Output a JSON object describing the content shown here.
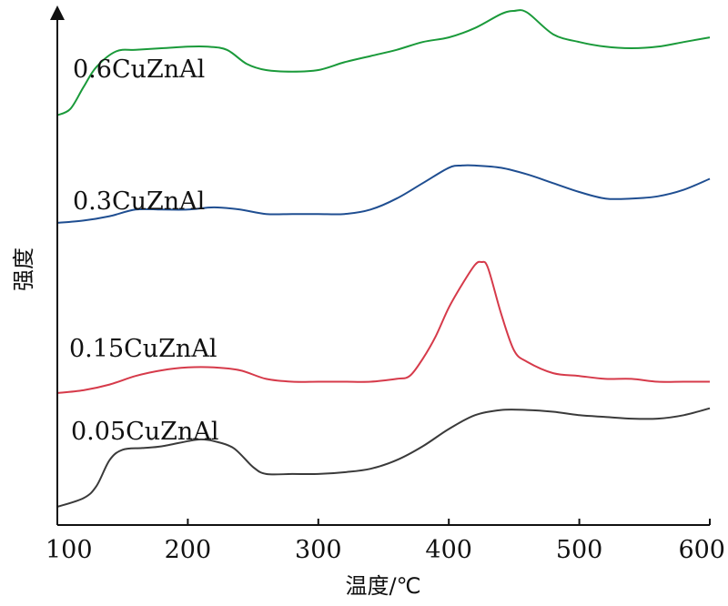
{
  "chart_data": {
    "type": "line",
    "xlabel": "温度/℃",
    "ylabel": "强度",
    "xlim": [
      100,
      600
    ],
    "x_ticks": [
      "100",
      "200",
      "300",
      "400",
      "500",
      "600"
    ],
    "y_ticks_shown": false,
    "grid": false,
    "legend": "labels placed above each curve at the left",
    "series": [
      {
        "name": "0.6CuZnAl",
        "color": "#1a9a3a",
        "x": [
          100,
          110,
          120,
          130,
          145,
          160,
          180,
          200,
          215,
          230,
          245,
          260,
          280,
          300,
          320,
          340,
          360,
          380,
          400,
          420,
          440,
          450,
          460,
          480,
          500,
          520,
          540,
          560,
          580,
          600
        ],
        "y": [
          33,
          37,
          51,
          64,
          74,
          75,
          76,
          77,
          77,
          75,
          66,
          62,
          61,
          62,
          67,
          71,
          75,
          80,
          83,
          89,
          98,
          100,
          99,
          85,
          80,
          77,
          76,
          77,
          80,
          83
        ]
      },
      {
        "name": "0.3CuZnAl",
        "color": "#1f4e91",
        "x": [
          100,
          120,
          140,
          160,
          180,
          200,
          220,
          240,
          260,
          280,
          300,
          320,
          340,
          360,
          380,
          400,
          410,
          420,
          440,
          460,
          480,
          500,
          520,
          540,
          560,
          580,
          600
        ],
        "y": [
          17,
          18,
          20,
          23,
          23,
          23,
          24,
          23,
          21,
          21,
          21,
          21,
          23,
          28,
          35,
          42,
          43,
          43,
          42,
          39,
          35,
          31,
          28,
          28,
          29,
          32,
          37
        ]
      },
      {
        "name": "0.15CuZnAl",
        "color": "#d63a4a",
        "x": [
          100,
          120,
          140,
          160,
          180,
          200,
          220,
          240,
          260,
          280,
          300,
          320,
          340,
          360,
          370,
          380,
          390,
          400,
          410,
          420,
          425,
          430,
          440,
          450,
          460,
          480,
          500,
          520,
          540,
          560,
          580,
          600
        ],
        "y": [
          0,
          1,
          3,
          6,
          8,
          9,
          9,
          8,
          5,
          4,
          4,
          4,
          4,
          5,
          6,
          12,
          20,
          30,
          38,
          45,
          46,
          44,
          28,
          15,
          11,
          7,
          6,
          5,
          5,
          4,
          4,
          4
        ]
      },
      {
        "name": "0.05CuZnAl",
        "color": "#3a3a3a",
        "x": [
          100,
          120,
          130,
          140,
          150,
          165,
          180,
          200,
          210,
          220,
          235,
          250,
          260,
          280,
          300,
          320,
          340,
          360,
          380,
          400,
          420,
          440,
          460,
          480,
          500,
          520,
          540,
          560,
          580,
          600
        ],
        "y": [
          0,
          5,
          12,
          27,
          33,
          34,
          35,
          38,
          39,
          38,
          34,
          23,
          19,
          19,
          19,
          20,
          22,
          27,
          35,
          45,
          53,
          56,
          56,
          55,
          53,
          52,
          51,
          51,
          53,
          57
        ]
      }
    ]
  }
}
